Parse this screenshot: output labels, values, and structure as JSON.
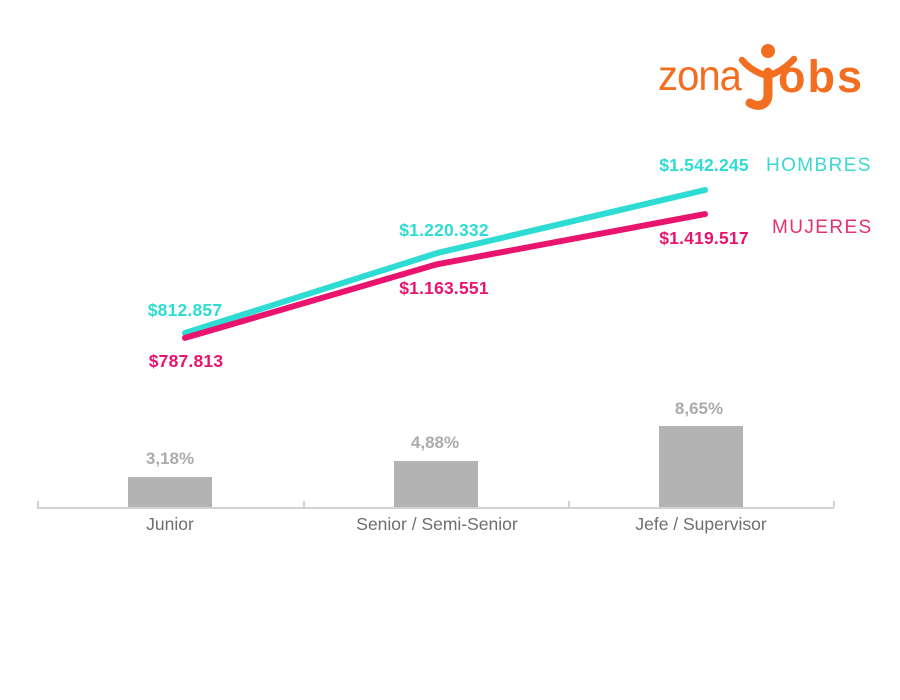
{
  "logo": {
    "part1": "zona",
    "part2": "obs",
    "name": "zonaJobs",
    "color": "#F26F21"
  },
  "legend": [
    {
      "label": "HOMBRES",
      "color": "#2EDCD3"
    },
    {
      "label": "MUJERES",
      "color": "#E8146E"
    }
  ],
  "chart_data": {
    "type": "line+bar",
    "title": "",
    "categories": [
      "Junior",
      "Senior / Semi-Senior",
      "Jefe / Supervisor"
    ],
    "line_series": [
      {
        "name": "HOMBRES",
        "color": "#2EDCD3",
        "values": [
          812857,
          1220332,
          1542245
        ],
        "value_labels": [
          "$812.857",
          "$1.220.332",
          "$1.542.245"
        ]
      },
      {
        "name": "MUJERES",
        "color": "#E8146E",
        "values": [
          787813,
          1163551,
          1419517
        ],
        "value_labels": [
          "$787.813",
          "$1.163.551",
          "$1.419.517"
        ]
      }
    ],
    "bar_series": {
      "color": "#B3B3B3",
      "values": [
        3.18,
        4.88,
        8.65
      ],
      "value_labels": [
        "3,18%",
        "4,88%",
        "8,65%"
      ]
    },
    "grid": false,
    "legend_position": "right",
    "background": "#FFFFFF"
  }
}
